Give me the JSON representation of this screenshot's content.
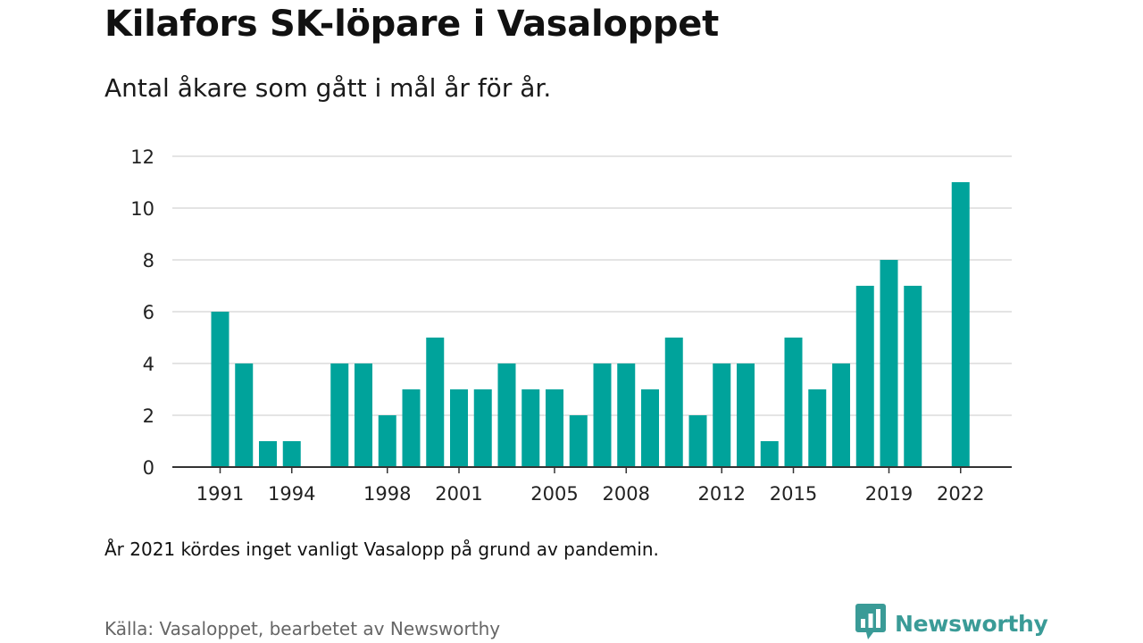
{
  "title": "Kilafors SK-löpare i Vasaloppet",
  "subtitle": "Antal åkare som gått i mål år för år.",
  "note": "År 2021 kördes inget vanligt Vasalopp på grund av pandemin.",
  "source": "Källa: Vasaloppet, bearbetet av Newsworthy",
  "brand": {
    "name": "Newsworthy",
    "icon": "newsworthy-logo-icon"
  },
  "chart_data": {
    "type": "bar",
    "x": [
      1991,
      1992,
      1993,
      1994,
      1995,
      1996,
      1997,
      1998,
      1999,
      2000,
      2001,
      2002,
      2003,
      2004,
      2005,
      2006,
      2007,
      2008,
      2009,
      2010,
      2011,
      2012,
      2013,
      2014,
      2015,
      2016,
      2017,
      2018,
      2019,
      2020,
      2021,
      2022
    ],
    "values": [
      6,
      4,
      1,
      1,
      null,
      4,
      4,
      2,
      3,
      5,
      3,
      3,
      4,
      3,
      3,
      2,
      4,
      4,
      3,
      5,
      2,
      4,
      4,
      1,
      5,
      3,
      4,
      7,
      8,
      7,
      null,
      11
    ],
    "x_ticks": [
      1991,
      1994,
      1998,
      2001,
      2005,
      2008,
      2012,
      2015,
      2019,
      2022
    ],
    "y_ticks": [
      0,
      2,
      4,
      6,
      8,
      10,
      12
    ],
    "ylim": [
      0,
      12
    ],
    "grid": true,
    "color": "#00a39b",
    "xlabel": "",
    "ylabel": ""
  }
}
